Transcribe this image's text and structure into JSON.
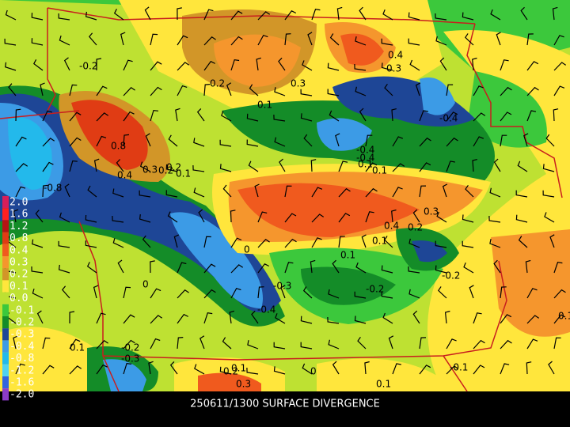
{
  "caption": "250611/1300 SURFACE DIVERGENCE",
  "colorbar": [
    {
      "label": "2.0",
      "color": "#d81e5a"
    },
    {
      "label": "1.6",
      "color": "#ff2020"
    },
    {
      "label": "1.2",
      "color": "#b41414"
    },
    {
      "label": "0.8",
      "color": "#e03c14"
    },
    {
      "label": "0.4",
      "color": "#f05a1e"
    },
    {
      "label": "0.3",
      "color": "#f5962d"
    },
    {
      "label": "0.2",
      "color": "#d29628"
    },
    {
      "label": "0.1",
      "color": "#ffe63c"
    },
    {
      "label": "0.0",
      "color": "#bee132"
    },
    {
      "label": "-0.1",
      "color": "#3cc83c"
    },
    {
      "label": "-0.2",
      "color": "#148c28"
    },
    {
      "label": "-0.3",
      "color": "#1e4696"
    },
    {
      "label": "-0.4",
      "color": "#3c9be6"
    },
    {
      "label": "-0.8",
      "color": "#23b9eb"
    },
    {
      "label": "-1.2",
      "color": "#50d2f0"
    },
    {
      "label": "-1.6",
      "color": "#3264dc"
    },
    {
      "label": "-2.0",
      "color": "#8c3cc8"
    }
  ],
  "contour_labels": [
    "-0.2",
    "0.2",
    "0.3",
    "0.4",
    "0.3",
    "0.1",
    "0.2",
    "0.1",
    "-0.4",
    "0.8",
    "0.4",
    "0.3",
    "0.2",
    "0.1",
    "-0.8",
    "-0.4",
    "-0.4",
    "0.1",
    "0.3",
    "0.4",
    "0.2",
    "0.1",
    "0.1",
    "-0.3",
    "-0.4",
    "-0.2",
    "-0.2",
    "0.1",
    "0.1",
    "-0.2",
    "-0.3",
    "0.2",
    "0.3",
    "0.1",
    "-0.1",
    "0.1",
    "0",
    "0",
    "0"
  ]
}
